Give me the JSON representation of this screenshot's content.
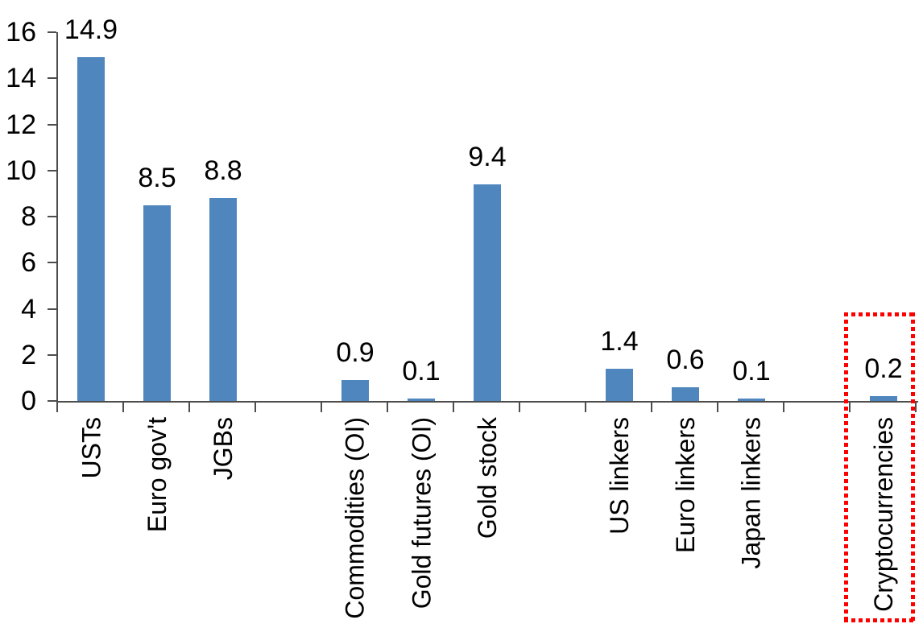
{
  "chart_data": {
    "type": "bar",
    "title": "",
    "xlabel": "",
    "ylabel": "",
    "categories": [
      "USTs",
      "Euro gov't",
      "JGBs",
      "",
      "Commodities (OI)",
      "Gold futures (OI)",
      "Gold stock",
      "",
      "US linkers",
      "Euro linkers",
      "Japan linkers",
      "",
      "Cryptocurrencies"
    ],
    "values": [
      14.9,
      8.5,
      8.8,
      null,
      0.9,
      0.1,
      9.4,
      null,
      1.4,
      0.6,
      0.1,
      null,
      0.2
    ],
    "value_labels": [
      "14.9",
      "8.5",
      "8.8",
      null,
      "0.9",
      "0.1",
      "9.4",
      null,
      "1.4",
      "0.6",
      "0.1",
      null,
      "0.2"
    ],
    "ylim": [
      0,
      16
    ],
    "yticks": [
      "0",
      "2",
      "4",
      "6",
      "8",
      "10",
      "12",
      "14",
      "16"
    ],
    "ytick_interval": 2,
    "grid": false,
    "legend": false,
    "colors": {
      "bar": "#4E86BD",
      "axis": "#4D4D4D",
      "text": "#000000",
      "highlight_box": "#FF0000"
    },
    "annotations": [
      {
        "type": "dotted-box",
        "target_category": "Cryptocurrencies",
        "target_value": "0.2",
        "color": "#FF0000"
      }
    ]
  }
}
